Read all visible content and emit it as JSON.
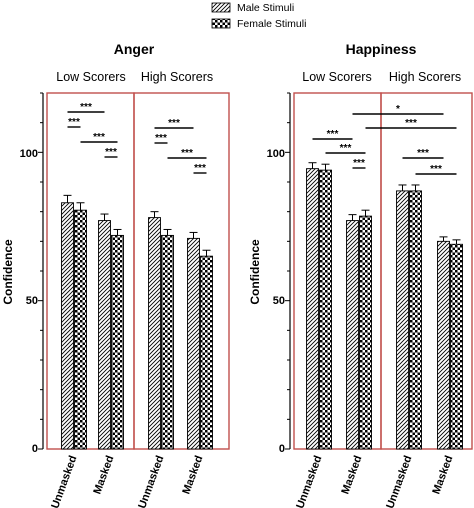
{
  "legend": [
    {
      "label": "Male Stimuli",
      "pattern": "hatch"
    },
    {
      "label": "Female Stimuli",
      "pattern": "checker"
    }
  ],
  "colors": {
    "frame": "#c0504d",
    "axis": "#000000",
    "bar_stroke": "#000000"
  },
  "chart_data": [
    {
      "type": "bar",
      "title": "Anger",
      "ylabel": "Confidence",
      "ylim": [
        0,
        120
      ],
      "yticks": [
        "0",
        "50",
        "100"
      ],
      "groups": [
        "Low Scorers",
        "High Scorers"
      ],
      "categories": [
        "Unmasked",
        "Masked",
        "Unmasked",
        "Masked"
      ],
      "series": [
        {
          "name": "Male Stimuli",
          "values": [
            83,
            77,
            78,
            71
          ],
          "errors": [
            2.5,
            2.2,
            2.0,
            2.0
          ]
        },
        {
          "name": "Female Stimuli",
          "values": [
            80.5,
            72,
            72,
            65
          ],
          "errors": [
            2.5,
            2.0,
            2.0,
            2.0
          ]
        }
      ],
      "significance": [
        {
          "label": "***",
          "from": [
            0,
            0
          ],
          "to": [
            1,
            0
          ]
        },
        {
          "label": "***",
          "from": [
            0,
            0
          ],
          "to": [
            0,
            1
          ]
        },
        {
          "label": "***",
          "from": [
            0,
            1
          ],
          "to": [
            1,
            1
          ]
        },
        {
          "label": "***",
          "from": [
            1,
            0
          ],
          "to": [
            1,
            1
          ]
        },
        {
          "label": "***",
          "from": [
            2,
            0
          ],
          "to": [
            3,
            0
          ]
        },
        {
          "label": "***",
          "from": [
            2,
            0
          ],
          "to": [
            2,
            1
          ]
        },
        {
          "label": "***",
          "from": [
            2,
            1
          ],
          "to": [
            3,
            1
          ]
        },
        {
          "label": "***",
          "from": [
            3,
            0
          ],
          "to": [
            3,
            1
          ]
        }
      ]
    },
    {
      "type": "bar",
      "title": "Happiness",
      "ylabel": "Confidence",
      "ylim": [
        0,
        120
      ],
      "yticks": [
        "0",
        "50",
        "100"
      ],
      "groups": [
        "Low Scorers",
        "High Scorers"
      ],
      "categories": [
        "Unmasked",
        "Masked",
        "Unmasked",
        "Masked"
      ],
      "series": [
        {
          "name": "Male Stimuli",
          "values": [
            94.5,
            77,
            87,
            70
          ],
          "errors": [
            2.0,
            2.0,
            2.0,
            1.5
          ]
        },
        {
          "name": "Female Stimuli",
          "values": [
            94,
            78.5,
            87,
            69
          ],
          "errors": [
            2.0,
            2.0,
            2.0,
            1.5
          ]
        }
      ],
      "significance": [
        {
          "label": "*",
          "from": [
            1,
            0
          ],
          "to": [
            3,
            0
          ]
        },
        {
          "label": "***",
          "from": [
            1,
            1
          ],
          "to": [
            3,
            1
          ]
        },
        {
          "label": "***",
          "from": [
            0,
            0
          ],
          "to": [
            1,
            0
          ]
        },
        {
          "label": "***",
          "from": [
            0,
            1
          ],
          "to": [
            1,
            1
          ]
        },
        {
          "label": "***",
          "from": [
            1,
            0
          ],
          "to": [
            1,
            1
          ]
        },
        {
          "label": "***",
          "from": [
            2,
            0
          ],
          "to": [
            3,
            0
          ]
        },
        {
          "label": "***",
          "from": [
            2,
            1
          ],
          "to": [
            3,
            1
          ]
        }
      ]
    }
  ]
}
